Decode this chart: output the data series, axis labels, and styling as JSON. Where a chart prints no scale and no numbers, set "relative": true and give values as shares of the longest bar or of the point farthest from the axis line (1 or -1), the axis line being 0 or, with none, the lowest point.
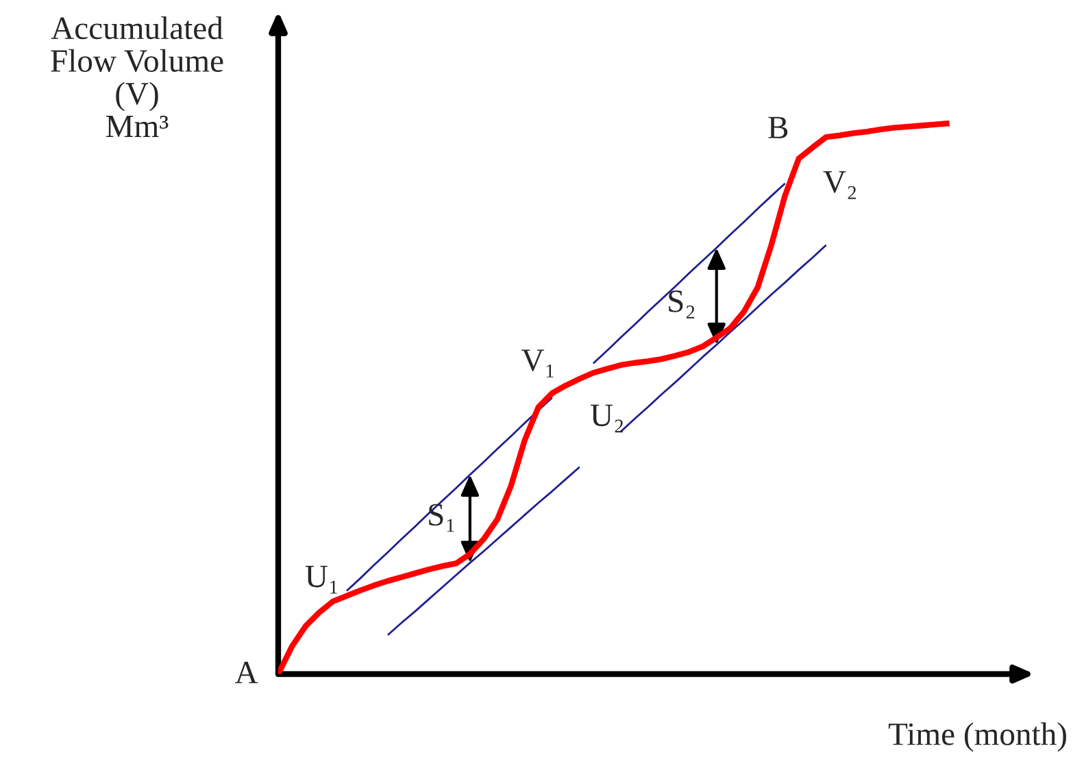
{
  "chart_data": {
    "type": "line",
    "relative": true,
    "xlabel": "Time (month)",
    "ylabel": "Accumulated\nFlow Volume\n(V)\nMm³",
    "categories": [
      null,
      null,
      null,
      null,
      null,
      null,
      null,
      null,
      null,
      null,
      null,
      null,
      null,
      null,
      null,
      null,
      null,
      null,
      null,
      null,
      null,
      null,
      null,
      null,
      null,
      null,
      null,
      null,
      null,
      null,
      null,
      null,
      null,
      null,
      null,
      null,
      null,
      null,
      null,
      null,
      null,
      null,
      null,
      null,
      null,
      null,
      null,
      null,
      null,
      null
    ],
    "series": [
      {
        "color": "#ff0000",
        "values": [
          0,
          0.05,
          0.087,
          0.112,
          0.132,
          0.142,
          0.152,
          0.161,
          0.169,
          0.176,
          0.183,
          0.19,
          0.196,
          0.201,
          0.218,
          0.245,
          0.281,
          0.342,
          0.425,
          0.485,
          0.51,
          0.524,
          0.536,
          0.547,
          0.554,
          0.561,
          0.565,
          0.568,
          0.572,
          0.578,
          0.585,
          0.595,
          0.611,
          0.628,
          0.658,
          0.702,
          0.779,
          0.869,
          0.936,
          0.956,
          0.975,
          0.978,
          0.982,
          0.985,
          0.989,
          0.992,
          0.994,
          0.996,
          0.998,
          1
        ]
      },
      {
        "color": "#1f1f8f",
        "values": [
          null,
          null,
          null,
          null,
          null,
          0.151,
          0.174,
          0.198,
          0.221,
          0.245,
          0.268,
          0.292,
          0.315,
          0.338,
          0.362,
          0.385,
          0.409,
          0.432,
          0.456,
          0.479,
          0.502,
          null,
          null,
          null,
          null,
          null,
          null,
          null,
          null,
          null,
          null,
          null,
          null,
          null,
          null,
          null,
          null,
          null,
          null,
          null,
          null,
          null,
          null,
          null,
          null,
          null,
          null,
          null,
          null,
          null
        ]
      },
      {
        "color": "#1f1f8f",
        "values": [
          null,
          null,
          null,
          null,
          null,
          null,
          null,
          null,
          0.071,
          0.093,
          0.114,
          0.136,
          0.158,
          0.18,
          0.202,
          0.223,
          0.245,
          0.267,
          0.289,
          0.311,
          0.332,
          0.354,
          0.376,
          null,
          null,
          null,
          null,
          null,
          null,
          null,
          null,
          null,
          null,
          null,
          null,
          null,
          null,
          null,
          null,
          null,
          null,
          null,
          null,
          null,
          null,
          null,
          null,
          null,
          null,
          null
        ]
      },
      {
        "color": "#1f1f8f",
        "values": [
          null,
          null,
          null,
          null,
          null,
          null,
          null,
          null,
          null,
          null,
          null,
          null,
          null,
          null,
          null,
          null,
          null,
          null,
          null,
          null,
          null,
          null,
          null,
          0.564,
          0.587,
          0.611,
          0.634,
          0.658,
          0.681,
          0.704,
          0.728,
          0.751,
          0.774,
          0.798,
          0.821,
          0.845,
          0.868,
          0.891,
          null,
          null,
          null,
          null,
          null,
          null,
          null,
          null,
          null,
          null,
          null,
          null
        ]
      },
      {
        "color": "#1f1f8f",
        "values": [
          null,
          null,
          null,
          null,
          null,
          null,
          null,
          null,
          null,
          null,
          null,
          null,
          null,
          null,
          null,
          null,
          null,
          null,
          null,
          null,
          null,
          null,
          null,
          null,
          null,
          0.44,
          0.463,
          0.485,
          0.508,
          0.53,
          0.553,
          0.576,
          0.598,
          0.621,
          0.643,
          0.666,
          0.689,
          0.711,
          0.734,
          0.756,
          0.779,
          null,
          null,
          null,
          null,
          null,
          null,
          null,
          null,
          null
        ]
      }
    ],
    "annotations": [
      "A",
      "B",
      "U₁",
      "V₁",
      "U₂",
      "V₂",
      "S₁",
      "S₂"
    ]
  }
}
